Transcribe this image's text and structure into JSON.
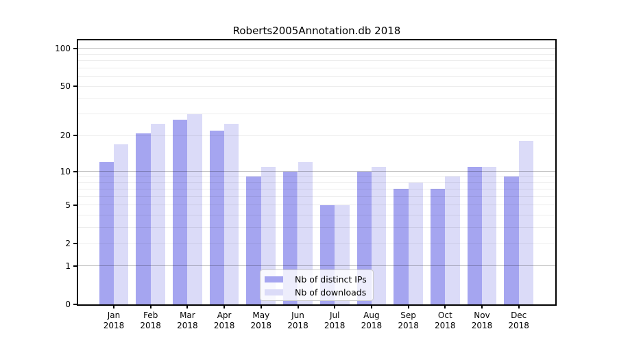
{
  "title": "Roberts2005Annotation.db 2018",
  "chart_data": {
    "type": "bar",
    "title": "Roberts2005Annotation.db 2018",
    "categories": [
      "Jan",
      "Feb",
      "Mar",
      "Apr",
      "May",
      "Jun",
      "Jul",
      "Aug",
      "Sep",
      "Oct",
      "Nov",
      "Dec"
    ],
    "year_label": "2018",
    "series": [
      {
        "name": "Nb of distinct IPs",
        "color": "#a5a5f0",
        "values": [
          12,
          21,
          27,
          22,
          9,
          10,
          5,
          10,
          7,
          7,
          11,
          9
        ]
      },
      {
        "name": "Nb of downloads",
        "color": "#dbdbf8",
        "values": [
          17,
          25,
          30,
          25,
          11,
          12,
          5,
          11,
          8,
          9,
          11,
          18
        ]
      }
    ],
    "xlabel": "",
    "ylabel": "",
    "yscale": "log1p",
    "ylim": [
      0,
      115
    ],
    "yticks": [
      0,
      1,
      2,
      5,
      10,
      20,
      50,
      100
    ],
    "major_gridlines": [
      1,
      10,
      100
    ],
    "minor_gridlines": [
      2,
      3,
      4,
      5,
      6,
      7,
      8,
      9,
      20,
      30,
      40,
      50,
      60,
      70,
      80,
      90
    ],
    "grid": "on",
    "legend_position": "lower center"
  },
  "legend": {
    "items": [
      {
        "label": "Nb of distinct IPs"
      },
      {
        "label": "Nb of downloads"
      }
    ]
  }
}
